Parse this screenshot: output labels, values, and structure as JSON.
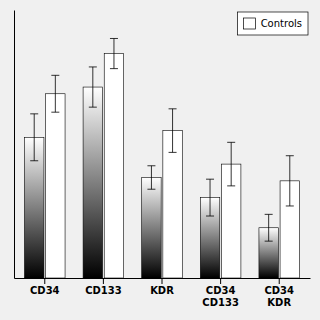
{
  "chart_data": {
    "type": "bar",
    "categories": [
      "CD34",
      "CD133",
      "KDR",
      "CD34\nCD133",
      "CD34\nKDR"
    ],
    "series": [
      {
        "values": [
          0.42,
          0.57,
          0.3,
          0.24,
          0.15
        ],
        "errors": [
          0.07,
          0.06,
          0.035,
          0.055,
          0.04
        ]
      },
      {
        "name": "Controls",
        "color": "#ffffff",
        "values": [
          0.55,
          0.67,
          0.44,
          0.34,
          0.29
        ],
        "errors": [
          0.055,
          0.045,
          0.065,
          0.065,
          0.075
        ]
      }
    ],
    "ylim": [
      0,
      0.8
    ],
    "tick_labels": "x",
    "legend": "upper right",
    "grid": false
  }
}
